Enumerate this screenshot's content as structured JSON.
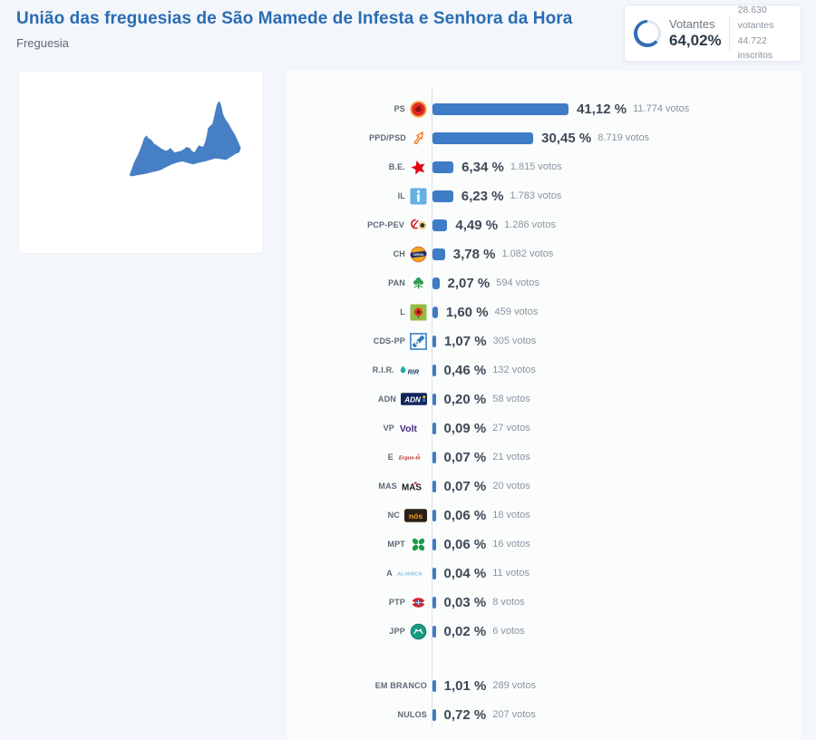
{
  "page": {
    "title": "União das freguesias de São Mamede de Infesta e Senhora da Hora",
    "subtitle": "Freguesia"
  },
  "turnout": {
    "label": "Votantes",
    "percent_label": "64,02%",
    "percent": 64.02,
    "voters_line": "28.630 votantes",
    "registered_line": "44.722 inscritos"
  },
  "colors": {
    "accent_blue": "#2a6cb4",
    "bar_blue": "#3e7cc6",
    "map_blue": "#477fc5",
    "ring_blue": "#2f6db5",
    "ring_track": "#dfe6ee"
  },
  "chart_data": {
    "type": "bar",
    "orientation": "horizontal",
    "value_unit": "%",
    "xlim": [
      0,
      45
    ],
    "series": [
      {
        "label": "PS",
        "logo": "ps-logo",
        "percent": 41.12,
        "percent_label": "41,12 %",
        "votes": 11774,
        "votes_label": "11.774 votos"
      },
      {
        "label": "PPD/PSD",
        "logo": "ppd-psd-logo",
        "percent": 30.45,
        "percent_label": "30,45 %",
        "votes": 8719,
        "votes_label": "8.719 votos"
      },
      {
        "label": "B.E.",
        "logo": "be-logo",
        "percent": 6.34,
        "percent_label": "6,34 %",
        "votes": 1815,
        "votes_label": "1.815 votos"
      },
      {
        "label": "IL",
        "logo": "il-logo",
        "percent": 6.23,
        "percent_label": "6,23 %",
        "votes": 1783,
        "votes_label": "1.783 votos"
      },
      {
        "label": "PCP-PEV",
        "logo": "pcp-pev-logo",
        "percent": 4.49,
        "percent_label": "4,49 %",
        "votes": 1286,
        "votes_label": "1.286 votos"
      },
      {
        "label": "CH",
        "logo": "chega-logo",
        "percent": 3.78,
        "percent_label": "3,78 %",
        "votes": 1082,
        "votes_label": "1.082 votos"
      },
      {
        "label": "PAN",
        "logo": "pan-logo",
        "percent": 2.07,
        "percent_label": "2,07 %",
        "votes": 594,
        "votes_label": "594 votos"
      },
      {
        "label": "L",
        "logo": "livre-logo",
        "percent": 1.6,
        "percent_label": "1,60 %",
        "votes": 459,
        "votes_label": "459 votos"
      },
      {
        "label": "CDS-PP",
        "logo": "cds-pp-logo",
        "percent": 1.07,
        "percent_label": "1,07 %",
        "votes": 305,
        "votes_label": "305 votos"
      },
      {
        "label": "R.I.R.",
        "logo": "rir-logo",
        "percent": 0.46,
        "percent_label": "0,46 %",
        "votes": 132,
        "votes_label": "132 votos"
      },
      {
        "label": "ADN",
        "logo": "adn-logo",
        "percent": 0.2,
        "percent_label": "0,20 %",
        "votes": 58,
        "votes_label": "58 votos"
      },
      {
        "label": "VP",
        "logo": "volt-logo",
        "percent": 0.09,
        "percent_label": "0,09 %",
        "votes": 27,
        "votes_label": "27 votos"
      },
      {
        "label": "E",
        "logo": "ergue-te-logo",
        "percent": 0.07,
        "percent_label": "0,07 %",
        "votes": 21,
        "votes_label": "21 votos"
      },
      {
        "label": "MAS",
        "logo": "mas-logo",
        "percent": 0.07,
        "percent_label": "0,07 %",
        "votes": 20,
        "votes_label": "20 votos"
      },
      {
        "label": "NC",
        "logo": "nos-cidadaos-logo",
        "percent": 0.06,
        "percent_label": "0,06 %",
        "votes": 18,
        "votes_label": "18 votos"
      },
      {
        "label": "MPT",
        "logo": "mpt-logo",
        "percent": 0.06,
        "percent_label": "0,06 %",
        "votes": 16,
        "votes_label": "16 votos"
      },
      {
        "label": "A",
        "logo": "alianca-logo",
        "percent": 0.04,
        "percent_label": "0,04 %",
        "votes": 11,
        "votes_label": "11 votos"
      },
      {
        "label": "PTP",
        "logo": "ptp-logo",
        "percent": 0.03,
        "percent_label": "0,03 %",
        "votes": 8,
        "votes_label": "8 votos"
      },
      {
        "label": "JPP",
        "logo": "jpp-logo",
        "percent": 0.02,
        "percent_label": "0,02 %",
        "votes": 6,
        "votes_label": "6 votos"
      }
    ],
    "extras": [
      {
        "label": "EM BRANCO",
        "percent": 1.01,
        "percent_label": "1,01 %",
        "votes": 289,
        "votes_label": "289 votos"
      },
      {
        "label": "NULOS",
        "percent": 0.72,
        "percent_label": "0,72 %",
        "votes": 207,
        "votes_label": "207 votos"
      }
    ]
  }
}
